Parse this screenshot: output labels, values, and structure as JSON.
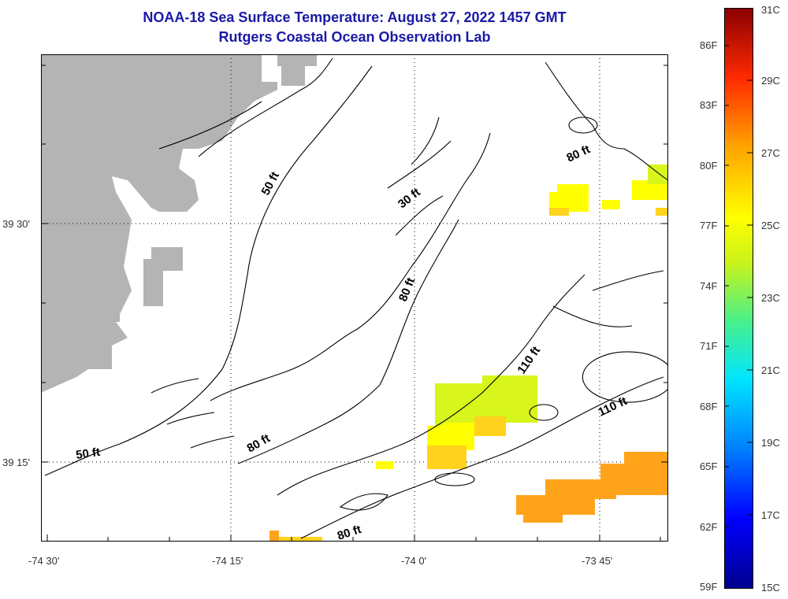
{
  "title": {
    "line1": "NOAA-18 Sea Surface Temperature:  August 27, 2022 1457 GMT",
    "line2": "Rutgers Coastal Ocean Observation Lab"
  },
  "axes": {
    "y_labels": [
      "39 30'",
      "39 15'"
    ],
    "x_labels": [
      "-74 30'",
      "-74 15'",
      "-74 0'",
      "-73 45'"
    ]
  },
  "contours": {
    "labels": [
      "50 ft",
      "30 ft",
      "80 ft",
      "80 ft",
      "110 ft",
      "110 ft",
      "80 ft",
      "50 ft",
      "80 ft"
    ]
  },
  "colorbar": {
    "celsius": [
      "31C",
      "29C",
      "27C",
      "25C",
      "23C",
      "21C",
      "19C",
      "17C",
      "15C"
    ],
    "fahrenheit": [
      "86F",
      "83F",
      "80F",
      "77F",
      "74F",
      "71F",
      "68F",
      "65F",
      "62F",
      "59F"
    ]
  },
  "colors": {
    "land": "#b4b4b4",
    "title": "#1a1aa6",
    "sst_yellow": "#ffff00",
    "sst_yellow_green": "#d8f51c",
    "sst_yellow_orange": "#ffd21e",
    "sst_orange": "#ffa41a"
  }
}
